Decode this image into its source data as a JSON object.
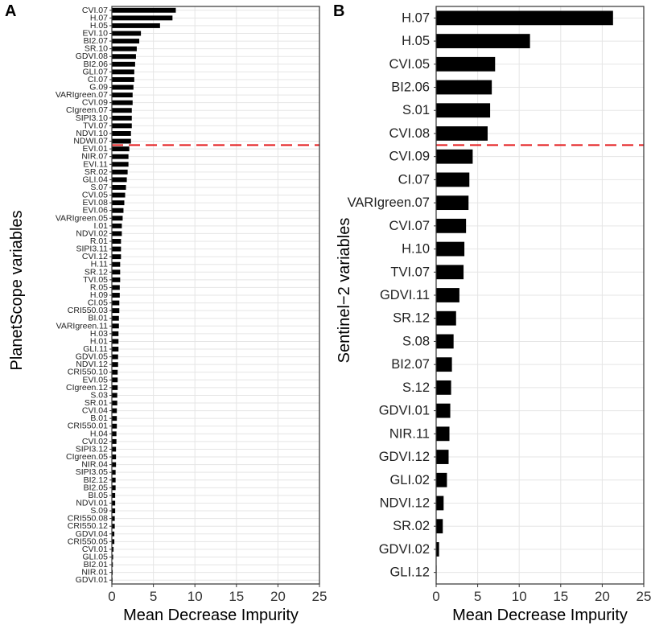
{
  "chart_data": [
    {
      "panel_label": "A",
      "type": "bar",
      "orientation": "horizontal",
      "ylabel": "PlanetScope variables",
      "xlabel": "Mean Decrease Impurity",
      "xlim": [
        0,
        25
      ],
      "xticks": [
        "0",
        "5",
        "10",
        "15",
        "20",
        "25"
      ],
      "threshold_after_index": 18,
      "colors": {
        "bar": "#000000",
        "threshold": "#e41a1c",
        "grid": "#e5e5e5",
        "frame": "#333333"
      },
      "categories": [
        "CVI.07",
        "H.07",
        "H.05",
        "EVI.10",
        "BI2.07",
        "SR.10",
        "GDVI.08",
        "BI2.06",
        "GLI.07",
        "CI.07",
        "G.09",
        "VARIgreen.07",
        "CVI.09",
        "CIgreen.07",
        "SIPI3.10",
        "TVI.07",
        "NDVI.10",
        "NDWI.07",
        "EVI.01",
        "NIR.07",
        "EVI.11",
        "SR.02",
        "GLI.04",
        "S.07",
        "CVI.05",
        "EVI.08",
        "EVI.06",
        "VARIgreen.05",
        "I.01",
        "NDVI.02",
        "R.01",
        "SIPI3.11",
        "CVI.12",
        "H.11",
        "SR.12",
        "TVI.05",
        "R.05",
        "H.09",
        "CI.05",
        "CRI550.03",
        "BI.01",
        "VARIgreen.11",
        "H.03",
        "H.01",
        "GLI.11",
        "GDVI.05",
        "NDVI.12",
        "CRI550.10",
        "EVI.05",
        "CIgreen.12",
        "S.03",
        "SR.01",
        "CVI.04",
        "B.01",
        "CRI550.01",
        "H.04",
        "CVI.02",
        "SIPI3.12",
        "CIgreen.05",
        "NIR.04",
        "SIPI3.05",
        "BI2.12",
        "BI2.05",
        "BI.05",
        "NDVI.01",
        "S.09",
        "CRI550.08",
        "CRI550.12",
        "GDVI.04",
        "CRI550.05",
        "CVI.01",
        "GLI.05",
        "BI2.01",
        "NIR.01",
        "GDVI.01"
      ],
      "values": [
        7.7,
        7.3,
        5.8,
        3.5,
        3.3,
        3.0,
        2.9,
        2.8,
        2.7,
        2.7,
        2.6,
        2.5,
        2.5,
        2.4,
        2.4,
        2.4,
        2.3,
        2.3,
        2.1,
        2.0,
        2.0,
        1.9,
        1.8,
        1.7,
        1.6,
        1.5,
        1.4,
        1.3,
        1.2,
        1.2,
        1.1,
        1.1,
        1.1,
        1.0,
        1.0,
        1.0,
        0.95,
        0.95,
        0.9,
        0.9,
        0.85,
        0.85,
        0.8,
        0.8,
        0.8,
        0.75,
        0.75,
        0.7,
        0.7,
        0.7,
        0.65,
        0.65,
        0.6,
        0.6,
        0.6,
        0.55,
        0.55,
        0.5,
        0.5,
        0.5,
        0.45,
        0.45,
        0.45,
        0.4,
        0.4,
        0.4,
        0.35,
        0.35,
        0.3,
        0.3,
        0.2,
        0.15,
        0.12,
        0.1,
        0.08
      ]
    },
    {
      "panel_label": "B",
      "type": "bar",
      "orientation": "horizontal",
      "ylabel": "Sentinel−2 variables",
      "xlabel": "Mean Decrease Impurity",
      "xlim": [
        0,
        25
      ],
      "xticks": [
        "0",
        "5",
        "10",
        "15",
        "20",
        "25"
      ],
      "threshold_after_index": 6,
      "colors": {
        "bar": "#000000",
        "threshold": "#e41a1c",
        "grid": "#e5e5e5",
        "frame": "#333333"
      },
      "categories": [
        "H.07",
        "H.05",
        "CVI.05",
        "BI2.06",
        "S.01",
        "CVI.08",
        "CVI.09",
        "CI.07",
        "VARIgreen.07",
        "CVI.07",
        "H.10",
        "TVI.07",
        "GDVI.11",
        "SR.12",
        "S.08",
        "BI2.07",
        "S.12",
        "GDVI.01",
        "NIR.11",
        "GDVI.12",
        "GLI.02",
        "NDVI.12",
        "SR.02",
        "GDVI.02",
        "GLI.12"
      ],
      "values": [
        21.3,
        11.3,
        7.1,
        6.7,
        6.5,
        6.2,
        4.4,
        4.0,
        3.9,
        3.6,
        3.4,
        3.3,
        2.8,
        2.4,
        2.1,
        1.9,
        1.8,
        1.7,
        1.6,
        1.5,
        1.3,
        0.9,
        0.8,
        0.35,
        0.05
      ]
    }
  ]
}
